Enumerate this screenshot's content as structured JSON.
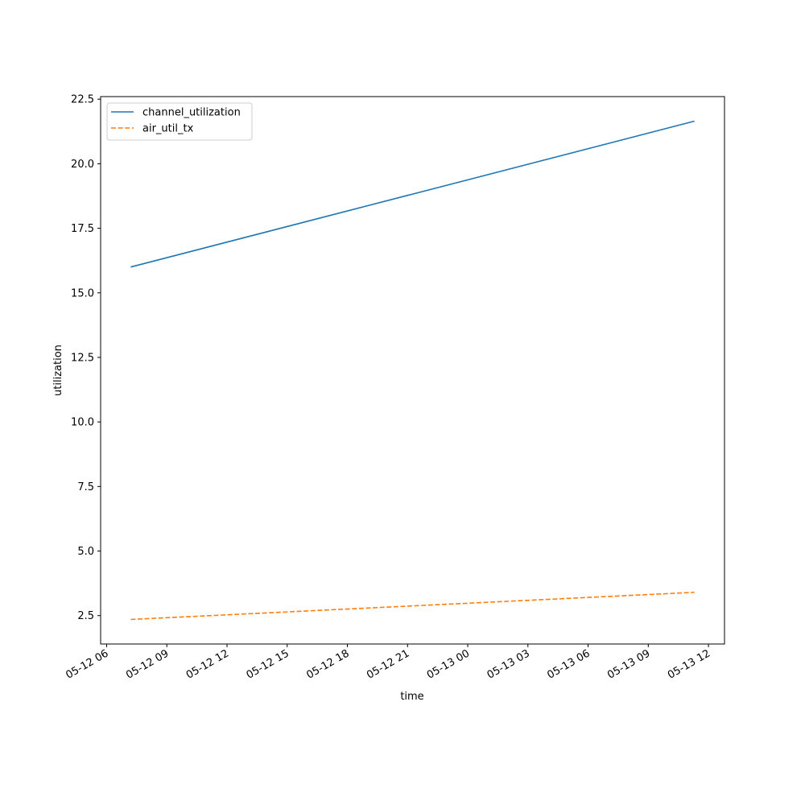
{
  "chart_data": {
    "type": "line",
    "xlabel": "time",
    "ylabel": "utilization",
    "x_axis_type": "datetime",
    "xlim": [
      "2024-05-12 05:42",
      "2024-05-13 12:48"
    ],
    "ylim": [
      1.4,
      22.6
    ],
    "xticks": [
      {
        "value": "2024-05-12 06:00",
        "label": "05-12 06"
      },
      {
        "value": "2024-05-12 09:00",
        "label": "05-12 09"
      },
      {
        "value": "2024-05-12 12:00",
        "label": "05-12 12"
      },
      {
        "value": "2024-05-12 15:00",
        "label": "05-12 15"
      },
      {
        "value": "2024-05-12 18:00",
        "label": "05-12 18"
      },
      {
        "value": "2024-05-12 21:00",
        "label": "05-12 21"
      },
      {
        "value": "2024-05-13 00:00",
        "label": "05-13 00"
      },
      {
        "value": "2024-05-13 03:00",
        "label": "05-13 03"
      },
      {
        "value": "2024-05-13 06:00",
        "label": "05-13 06"
      },
      {
        "value": "2024-05-13 09:00",
        "label": "05-13 09"
      },
      {
        "value": "2024-05-13 12:00",
        "label": "05-13 12"
      }
    ],
    "yticks": [
      {
        "value": 2.5,
        "label": "2.5"
      },
      {
        "value": 5.0,
        "label": "5.0"
      },
      {
        "value": 7.5,
        "label": "7.5"
      },
      {
        "value": 10.0,
        "label": "10.0"
      },
      {
        "value": 12.5,
        "label": "12.5"
      },
      {
        "value": 15.0,
        "label": "15.0"
      },
      {
        "value": 17.5,
        "label": "17.5"
      },
      {
        "value": 20.0,
        "label": "20.0"
      },
      {
        "value": 22.5,
        "label": "22.5"
      }
    ],
    "series": [
      {
        "name": "channel_utilization",
        "color": "#1f77b4",
        "style": "solid",
        "points": [
          {
            "x": "2024-05-12 07:12",
            "y": 16.0
          },
          {
            "x": "2024-05-13 11:18",
            "y": 21.65
          }
        ]
      },
      {
        "name": "air_util_tx",
        "color": "#ff7f0e",
        "style": "dashed",
        "points": [
          {
            "x": "2024-05-12 07:12",
            "y": 2.35
          },
          {
            "x": "2024-05-13 11:18",
            "y": 3.4
          }
        ]
      }
    ],
    "legend_position": "top-left",
    "grid": false
  }
}
